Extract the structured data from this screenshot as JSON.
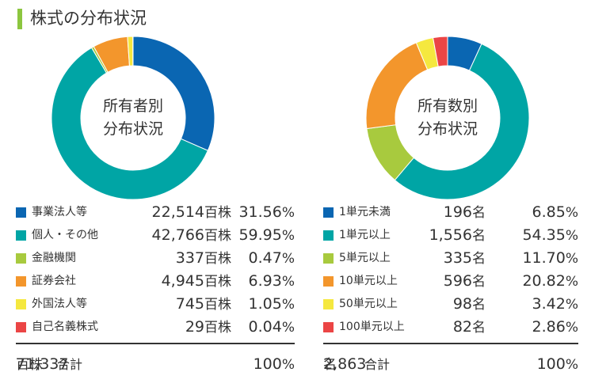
{
  "page": {
    "title": "株式の分布状況",
    "accent_color": "#8cc63f"
  },
  "chart_data": [
    {
      "type": "pie",
      "center_label": [
        "所有者別",
        "分布状況"
      ],
      "categories": [
        "事業法人等",
        "個人・その他",
        "金融機関",
        "証券会社",
        "外国法人等",
        "自己名義株式"
      ],
      "values": [
        31.56,
        59.95,
        0.47,
        6.93,
        1.05,
        0.04
      ],
      "colors": [
        "#0a66b2",
        "#00a5a5",
        "#a8ca3e",
        "#f3962c",
        "#f5e83f",
        "#eb4545"
      ],
      "rows": [
        {
          "label": "事業法人等",
          "amount": "22,514",
          "unit": "百株",
          "pct": "31.56",
          "pct_sym": "%"
        },
        {
          "label": "個人・その他",
          "amount": "42,766",
          "unit": "百株",
          "pct": "59.95",
          "pct_sym": "%"
        },
        {
          "label": "金融機関",
          "amount": "337",
          "unit": "百株",
          "pct": "0.47",
          "pct_sym": "%"
        },
        {
          "label": "証券会社",
          "amount": "4,945",
          "unit": "百株",
          "pct": "6.93",
          "pct_sym": "%"
        },
        {
          "label": "外国法人等",
          "amount": "745",
          "unit": "百株",
          "pct": "1.05",
          "pct_sym": "%"
        },
        {
          "label": "自己名義株式",
          "amount": "29",
          "unit": "百株",
          "pct": "0.04",
          "pct_sym": "%"
        }
      ],
      "total": {
        "label": "合計",
        "amount": "71,337",
        "unit": "百株",
        "pct": "100",
        "pct_sym": "%"
      }
    },
    {
      "type": "pie",
      "center_label": [
        "所有数別",
        "分布状況"
      ],
      "categories": [
        "1単元未満",
        "1単元以上",
        "5単元以上",
        "10単元以上",
        "50単元以上",
        "100単元以上"
      ],
      "values": [
        6.85,
        54.35,
        11.7,
        20.82,
        3.42,
        2.86
      ],
      "colors": [
        "#0a66b2",
        "#00a5a5",
        "#a8ca3e",
        "#f3962c",
        "#f5e83f",
        "#eb4545"
      ],
      "rows": [
        {
          "label": "1単元未満",
          "amount": "196",
          "unit": "名",
          "pct": "6.85",
          "pct_sym": "%"
        },
        {
          "label": "1単元以上",
          "amount": "1,556",
          "unit": "名",
          "pct": "54.35",
          "pct_sym": "%"
        },
        {
          "label": "5単元以上",
          "amount": "335",
          "unit": "名",
          "pct": "11.70",
          "pct_sym": "%"
        },
        {
          "label": "10単元以上",
          "amount": "596",
          "unit": "名",
          "pct": "20.82",
          "pct_sym": "%"
        },
        {
          "label": "50単元以上",
          "amount": "98",
          "unit": "名",
          "pct": "3.42",
          "pct_sym": "%"
        },
        {
          "label": "100単元以上",
          "amount": "82",
          "unit": "名",
          "pct": "2.86",
          "pct_sym": "%"
        }
      ],
      "total": {
        "label": "合計",
        "amount": "2,863",
        "unit": "名",
        "pct": "100",
        "pct_sym": "%"
      }
    }
  ]
}
